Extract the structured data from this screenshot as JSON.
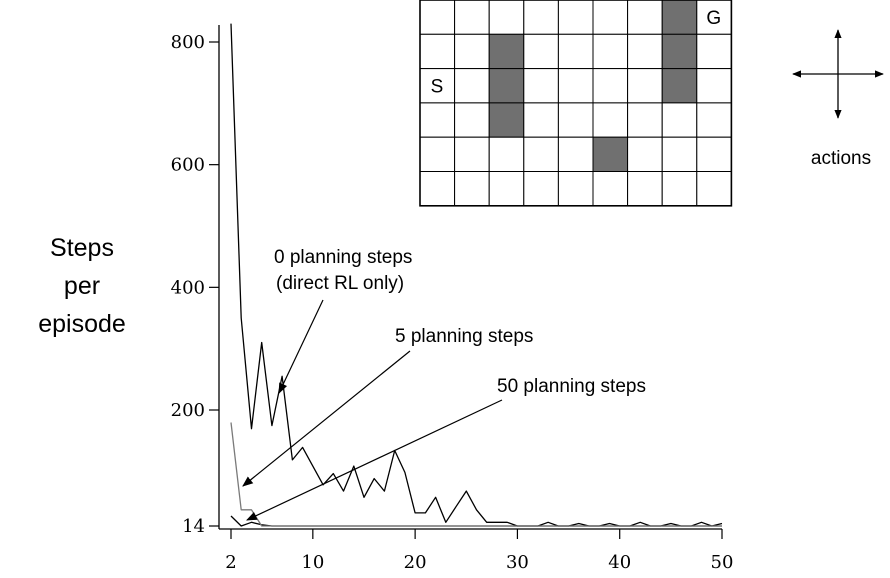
{
  "chart_data": {
    "type": "line",
    "ylabel_lines": [
      "Steps",
      "per",
      "episode"
    ],
    "xlabel": "",
    "title": "",
    "x_ticks": [
      2,
      10,
      20,
      30,
      40,
      50
    ],
    "y_ticks": [
      14,
      200,
      400,
      600,
      800
    ],
    "xlim": [
      2,
      50
    ],
    "ylim": [
      14,
      830
    ],
    "grid": false,
    "series": [
      {
        "name": "0 planning steps",
        "color": "#000000",
        "x": [
          2,
          3,
          4,
          5,
          6,
          7,
          8,
          9,
          10,
          11,
          12,
          13,
          14,
          15,
          16,
          17,
          18,
          19,
          20,
          21,
          22,
          23,
          24,
          25,
          26,
          27,
          28,
          29,
          30,
          31,
          32,
          33,
          34,
          35,
          36,
          37,
          38,
          39,
          40,
          41,
          42,
          43,
          44,
          45,
          46,
          47,
          48,
          49,
          50
        ],
        "y": [
          830,
          350,
          170,
          310,
          175,
          255,
          120,
          140,
          110,
          80,
          98,
          70,
          110,
          60,
          90,
          70,
          135,
          100,
          35,
          35,
          60,
          20,
          45,
          70,
          40,
          20,
          20,
          20,
          14,
          14,
          14,
          20,
          14,
          14,
          18,
          14,
          14,
          18,
          14,
          14,
          20,
          14,
          14,
          18,
          14,
          14,
          20,
          14,
          18
        ]
      },
      {
        "name": "5 planning steps",
        "color": "#000000",
        "x": [
          2,
          3,
          4,
          5,
          6,
          7,
          8,
          9,
          10,
          11,
          12,
          13,
          14,
          15,
          16,
          17,
          18,
          19,
          20,
          21,
          22,
          23,
          24,
          25,
          26,
          27,
          28,
          29,
          30,
          31,
          32,
          33,
          34,
          35,
          36,
          37,
          38,
          39,
          40,
          41,
          42,
          43,
          44,
          45,
          46,
          47,
          48,
          49,
          50
        ],
        "y": [
          30,
          14,
          20,
          16,
          14,
          14,
          14,
          14,
          14,
          14,
          14,
          14,
          14,
          14,
          14,
          14,
          14,
          14,
          14,
          14,
          14,
          14,
          14,
          14,
          14,
          14,
          14,
          14,
          14,
          14,
          14,
          14,
          14,
          14,
          14,
          14,
          14,
          14,
          14,
          14,
          14,
          14,
          14,
          14,
          14,
          14,
          14,
          14,
          14
        ]
      },
      {
        "name": "50 planning steps",
        "color": "#7a7a7a",
        "x": [
          2,
          3,
          4,
          5,
          6,
          7,
          8,
          9,
          10,
          11,
          12,
          13,
          14,
          15,
          16,
          17,
          18,
          19,
          20,
          21,
          22,
          23,
          24,
          25,
          26,
          27,
          28,
          29,
          30,
          31,
          32,
          33,
          34,
          35,
          36,
          37,
          38,
          39,
          40,
          41,
          42,
          43,
          44,
          45,
          46,
          47,
          48,
          49,
          50
        ],
        "y": [
          180,
          40,
          40,
          14,
          14,
          14,
          14,
          14,
          14,
          14,
          14,
          14,
          14,
          14,
          14,
          14,
          14,
          14,
          14,
          14,
          14,
          14,
          14,
          14,
          14,
          14,
          14,
          14,
          14,
          14,
          14,
          14,
          14,
          14,
          14,
          14,
          14,
          14,
          14,
          14,
          14,
          14,
          14,
          14,
          14,
          14,
          14,
          14,
          14
        ]
      }
    ],
    "annotations": [
      {
        "lines": [
          "0 planning steps",
          "(direct RL only)"
        ]
      },
      {
        "lines": [
          "5 planning steps"
        ]
      },
      {
        "lines": [
          "50 planning steps"
        ]
      }
    ]
  },
  "gridworld": {
    "rows": 6,
    "cols": 9,
    "walls": [
      [
        1,
        2
      ],
      [
        2,
        2
      ],
      [
        3,
        2
      ],
      [
        0,
        7
      ],
      [
        1,
        7
      ],
      [
        2,
        7
      ],
      [
        4,
        5
      ]
    ],
    "start_label": "S",
    "start_cell": [
      2,
      0
    ],
    "goal_label": "G",
    "goal_cell": [
      0,
      8
    ],
    "wall_color": "#707070"
  },
  "actions_label": "actions"
}
